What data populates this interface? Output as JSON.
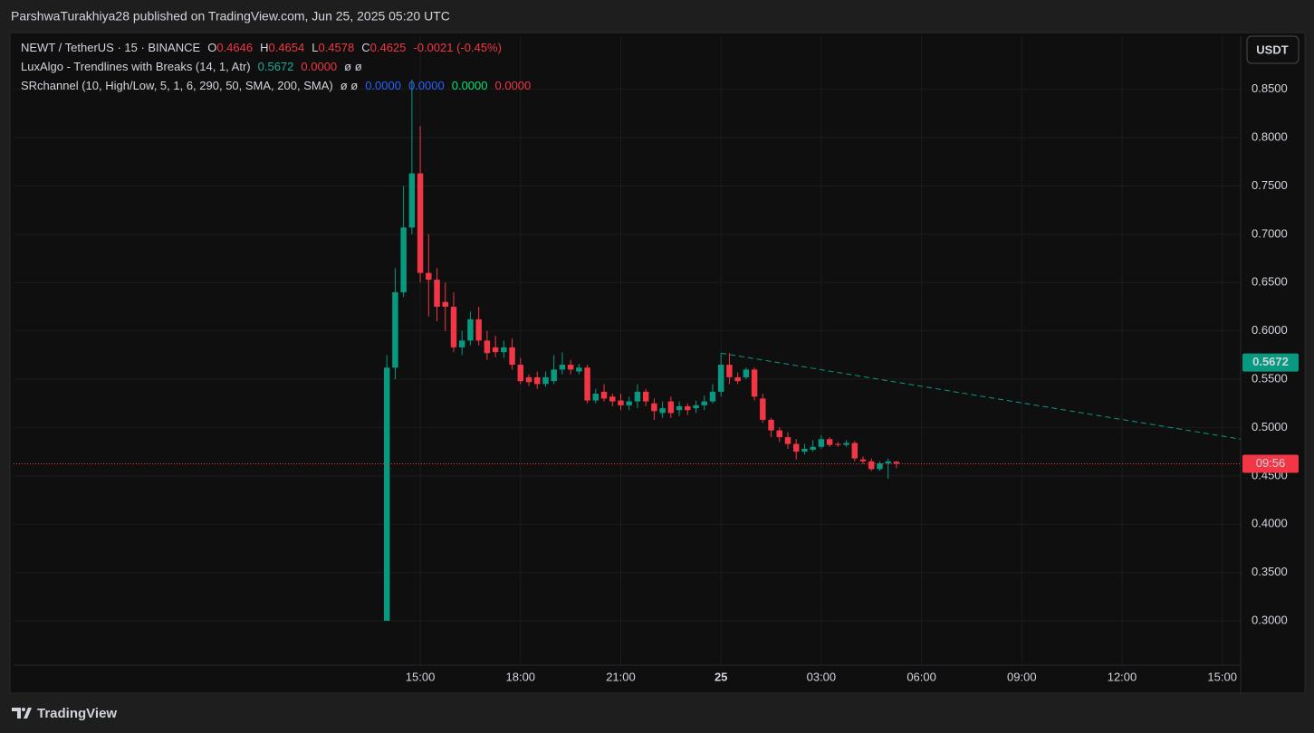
{
  "header": {
    "publisher": "ParshwaTurakhiya28 published on TradingView.com, Jun 25, 2025 05:20 UTC",
    "currency_button": "USDT",
    "brand": "TradingView"
  },
  "legend": {
    "symbol": "NEWT / TetherUS · 15 · BINANCE",
    "ohlc": [
      {
        "key": "O",
        "value": 0.4646
      },
      {
        "key": "H",
        "value": 0.4654
      },
      {
        "key": "L",
        "value": 0.4578
      },
      {
        "key": "C",
        "value": 0.4625
      }
    ],
    "change": "-0.0021 (-0.45%)"
  },
  "indicators": [
    {
      "name": "LuxAlgo - Trendlines with Breaks (14, 1, Atr)",
      "values": [
        0.5672,
        "0.0000"
      ],
      "symbols": "ø ø"
    },
    {
      "name": "SRchannel (10, High/Low, 5, 1, 6, 290, 50, SMA, 200, SMA)",
      "symbols": "ø ø",
      "values": [
        "0.0000",
        "0.0000",
        "0.0000",
        "0.0000"
      ]
    }
  ],
  "chart_data": {
    "type": "candlestick",
    "x": [
      14,
      14.25,
      14.5,
      14.75,
      15,
      15.25,
      15.5,
      15.75,
      16,
      16.25,
      16.5,
      16.75,
      17,
      17.25,
      17.5,
      17.75,
      18,
      18.25,
      18.5,
      18.75,
      19,
      19.25,
      19.5,
      19.75,
      20,
      20.25,
      20.5,
      20.75,
      21,
      21.25,
      21.5,
      21.75,
      22,
      22.25,
      22.5,
      22.75,
      23,
      23.25,
      23.5,
      23.75,
      24,
      24.25,
      24.5,
      24.75,
      25,
      25.25,
      25.5,
      25.75,
      26,
      26.25,
      26.5,
      26.75,
      27,
      27.25,
      27.5,
      27.75,
      28,
      28.25,
      28.5,
      28.75,
      29,
      29.25
    ],
    "open": [
      0.3,
      0.562,
      0.64,
      0.707,
      0.763,
      0.66,
      0.653,
      0.63,
      0.625,
      0.583,
      0.59,
      0.612,
      0.59,
      0.583,
      0.578,
      0.583,
      0.565,
      0.552,
      0.552,
      0.545,
      0.548,
      0.56,
      0.565,
      0.558,
      0.562,
      0.528,
      0.537,
      0.532,
      0.528,
      0.523,
      0.527,
      0.537,
      0.525,
      0.515,
      0.527,
      0.518,
      0.522,
      0.52,
      0.523,
      0.527,
      0.537,
      0.565,
      0.552,
      0.552,
      0.56,
      0.53,
      0.508,
      0.497,
      0.49,
      0.483,
      0.475,
      0.477,
      0.48,
      0.488,
      0.483,
      0.482,
      0.484,
      0.467,
      0.465,
      0.457,
      0.463,
      0.4646
    ],
    "high": [
      0.575,
      0.665,
      0.75,
      0.86,
      0.812,
      0.7,
      0.665,
      0.65,
      0.64,
      0.6,
      0.62,
      0.625,
      0.6,
      0.595,
      0.59,
      0.592,
      0.572,
      0.555,
      0.558,
      0.558,
      0.575,
      0.578,
      0.57,
      0.566,
      0.565,
      0.54,
      0.545,
      0.535,
      0.535,
      0.532,
      0.545,
      0.54,
      0.53,
      0.527,
      0.532,
      0.527,
      0.525,
      0.528,
      0.533,
      0.545,
      0.577,
      0.577,
      0.557,
      0.562,
      0.562,
      0.535,
      0.51,
      0.5,
      0.495,
      0.488,
      0.483,
      0.487,
      0.492,
      0.49,
      0.485,
      0.487,
      0.486,
      0.47,
      0.468,
      0.465,
      0.468,
      0.4654
    ],
    "low": [
      0.3,
      0.55,
      0.635,
      0.7,
      0.65,
      0.615,
      0.61,
      0.6,
      0.578,
      0.575,
      0.585,
      0.585,
      0.57,
      0.573,
      0.572,
      0.56,
      0.545,
      0.543,
      0.54,
      0.542,
      0.545,
      0.555,
      0.555,
      0.555,
      0.525,
      0.525,
      0.527,
      0.522,
      0.518,
      0.518,
      0.52,
      0.522,
      0.508,
      0.51,
      0.51,
      0.512,
      0.513,
      0.515,
      0.518,
      0.525,
      0.532,
      0.545,
      0.545,
      0.55,
      0.528,
      0.505,
      0.49,
      0.485,
      0.478,
      0.467,
      0.472,
      0.475,
      0.478,
      0.48,
      0.48,
      0.48,
      0.465,
      0.462,
      0.455,
      0.455,
      0.447,
      0.4578
    ],
    "close": [
      0.562,
      0.64,
      0.707,
      0.763,
      0.66,
      0.653,
      0.625,
      0.625,
      0.583,
      0.59,
      0.612,
      0.59,
      0.577,
      0.578,
      0.583,
      0.565,
      0.548,
      0.547,
      0.545,
      0.552,
      0.56,
      0.565,
      0.56,
      0.562,
      0.528,
      0.535,
      0.53,
      0.527,
      0.523,
      0.527,
      0.537,
      0.527,
      0.517,
      0.52,
      0.515,
      0.522,
      0.518,
      0.523,
      0.527,
      0.537,
      0.565,
      0.552,
      0.548,
      0.56,
      0.532,
      0.508,
      0.497,
      0.49,
      0.483,
      0.475,
      0.478,
      0.48,
      0.488,
      0.482,
      0.482,
      0.484,
      0.468,
      0.465,
      0.457,
      0.463,
      0.465,
      0.4625
    ],
    "colors": {
      "up": "#089981",
      "down": "#f23645"
    },
    "trendline": {
      "x": [
        24,
        39.55
      ],
      "values": [
        0.577,
        0.488
      ],
      "color": "#089981"
    },
    "countdown_label": "09:56",
    "xlim": [
      2.83,
      39.55
    ],
    "ylim": [
      0.226,
      0.905
    ],
    "xticks": [
      {
        "value": 15,
        "label": "15:00"
      },
      {
        "value": 18,
        "label": "18:00"
      },
      {
        "value": 21,
        "label": "21:00"
      },
      {
        "value": 24,
        "label": "25"
      },
      {
        "value": 27,
        "label": "03:00"
      },
      {
        "value": 30,
        "label": "06:00"
      },
      {
        "value": 33,
        "label": "09:00"
      },
      {
        "value": 36,
        "label": "12:00"
      },
      {
        "value": 39,
        "label": "15:00"
      }
    ],
    "yticks": [
      {
        "value": 0.3,
        "label": "0.3000"
      },
      {
        "value": 0.35,
        "label": "0.3500"
      },
      {
        "value": 0.4,
        "label": "0.4000"
      },
      {
        "value": 0.45,
        "label": "0.4500"
      },
      {
        "value": 0.5,
        "label": "0.5000"
      },
      {
        "value": 0.55,
        "label": "0.5500"
      },
      {
        "value": 0.6,
        "label": "0.6000"
      },
      {
        "value": 0.65,
        "label": "0.6500"
      },
      {
        "value": 0.7,
        "label": "0.7000"
      },
      {
        "value": 0.75,
        "label": "0.7500"
      },
      {
        "value": 0.8,
        "label": "0.8000"
      },
      {
        "value": 0.85,
        "label": "0.8500"
      }
    ],
    "grid": true
  }
}
